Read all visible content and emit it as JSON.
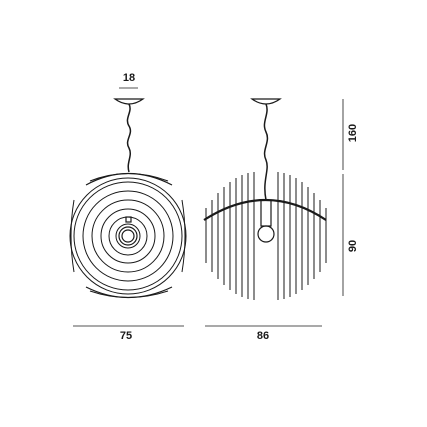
{
  "dimensions": {
    "canopy_diameter": "18",
    "cable_length": "160",
    "shade_height": "90",
    "front_width": "75",
    "side_width": "86"
  },
  "colors": {
    "line": "#1a1a1a",
    "background": "#ffffff"
  }
}
